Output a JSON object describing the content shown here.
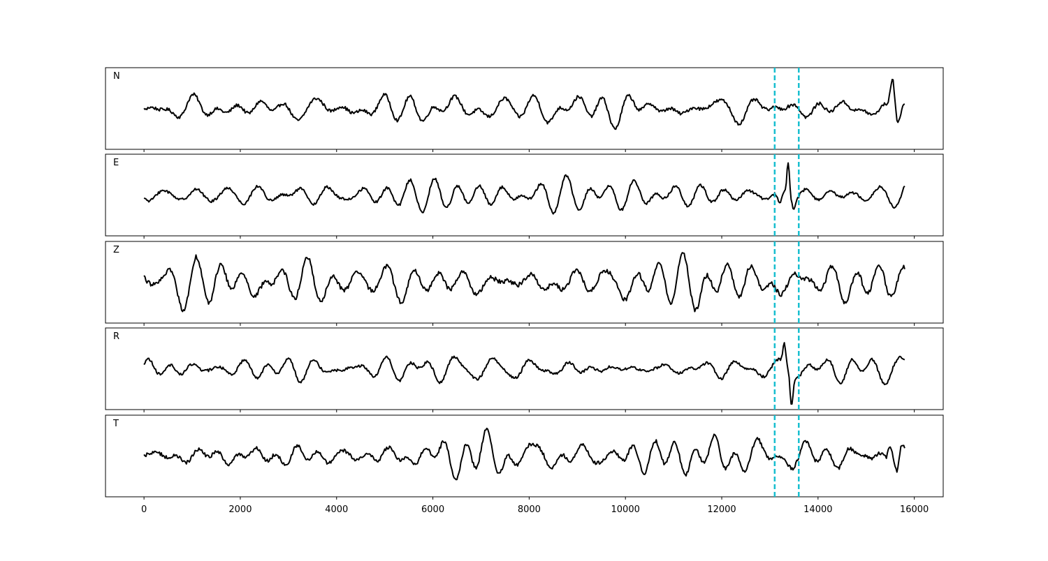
{
  "chart_data": {
    "type": "line",
    "title": "",
    "xlabel": "",
    "ylabel": "",
    "xlim": [
      -800,
      16600
    ],
    "x_ticks": [
      0,
      2000,
      4000,
      6000,
      8000,
      10000,
      12000,
      14000,
      16000
    ],
    "x_tick_labels": [
      "0",
      "2000",
      "4000",
      "6000",
      "8000",
      "10000",
      "12000",
      "14000",
      "16000"
    ],
    "grid": false,
    "legend": "none",
    "line_color": "#000000",
    "marker_color": "#17becf",
    "markers": [
      13100,
      13600
    ],
    "sample_count": 15800,
    "series": [
      {
        "name": "N",
        "baseline": 0.0,
        "noise_amplitude": 0.36,
        "events": [
          {
            "x": 15550,
            "amplitude": 0.9,
            "width": 60
          },
          {
            "x": 15650,
            "amplitude": -0.4,
            "width": 80
          }
        ]
      },
      {
        "name": "E",
        "baseline": 0.0,
        "noise_amplitude": 0.3,
        "events": [
          {
            "x": 13200,
            "amplitude": -0.35,
            "width": 60
          },
          {
            "x": 13380,
            "amplitude": 1.0,
            "width": 40
          },
          {
            "x": 13500,
            "amplitude": -0.25,
            "width": 50
          }
        ]
      },
      {
        "name": "Z",
        "baseline": 0.0,
        "noise_amplitude": 0.5,
        "events": []
      },
      {
        "name": "R",
        "baseline": 0.0,
        "noise_amplitude": 0.3,
        "events": [
          {
            "x": 13300,
            "amplitude": 0.6,
            "width": 40
          },
          {
            "x": 13450,
            "amplitude": -1.0,
            "width": 40
          }
        ]
      },
      {
        "name": "T",
        "baseline": 0.0,
        "noise_amplitude": 0.4,
        "events": [
          {
            "x": 15500,
            "amplitude": 0.5,
            "width": 60
          },
          {
            "x": 15650,
            "amplitude": -0.6,
            "width": 60
          }
        ]
      }
    ]
  }
}
